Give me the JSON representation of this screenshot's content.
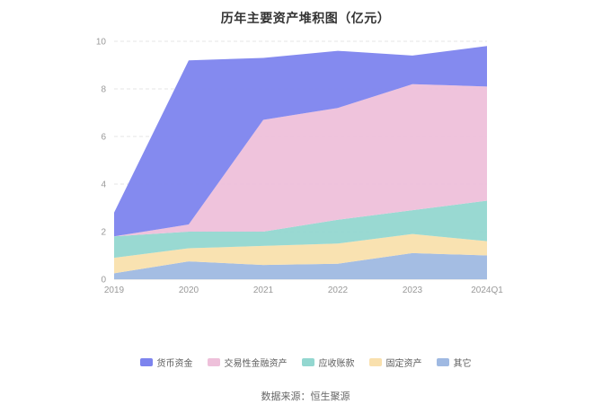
{
  "title": "历年主要资产堆积图（亿元）",
  "footer": "数据来源：恒生聚源",
  "chart_data": {
    "type": "area",
    "stacked": true,
    "title": "历年主要资产堆积图（亿元）",
    "xlabel": "",
    "ylabel": "",
    "ylim": [
      0,
      10
    ],
    "yticks": [
      0,
      2,
      4,
      6,
      8,
      10
    ],
    "grid": "dashed-horizontal",
    "legend_position": "bottom",
    "categories": [
      "2019",
      "2020",
      "2021",
      "2022",
      "2023",
      "2024Q1"
    ],
    "series": [
      {
        "name": "其它",
        "color": "#9fb9e2",
        "values": [
          0.25,
          0.75,
          0.6,
          0.65,
          1.1,
          1.0
        ]
      },
      {
        "name": "固定资产",
        "color": "#f9e0ad",
        "values": [
          0.65,
          0.55,
          0.8,
          0.85,
          0.8,
          0.6
        ]
      },
      {
        "name": "应收账款",
        "color": "#93d7d0",
        "values": [
          0.9,
          0.7,
          0.6,
          1.0,
          1.0,
          1.7
        ]
      },
      {
        "name": "交易性金融资产",
        "color": "#eec0da",
        "values": [
          0.0,
          0.3,
          4.7,
          4.7,
          5.3,
          4.8
        ]
      },
      {
        "name": "货币资金",
        "color": "#7d84ee",
        "values": [
          1.0,
          6.9,
          2.6,
          2.4,
          1.2,
          1.7
        ]
      }
    ],
    "legend_order": [
      "货币资金",
      "交易性金融资产",
      "应收账款",
      "固定资产",
      "其它"
    ],
    "axis_label_color": "#999999",
    "grid_line_color": "#e6e6e6",
    "baseline_color": "#d9d9d9"
  }
}
